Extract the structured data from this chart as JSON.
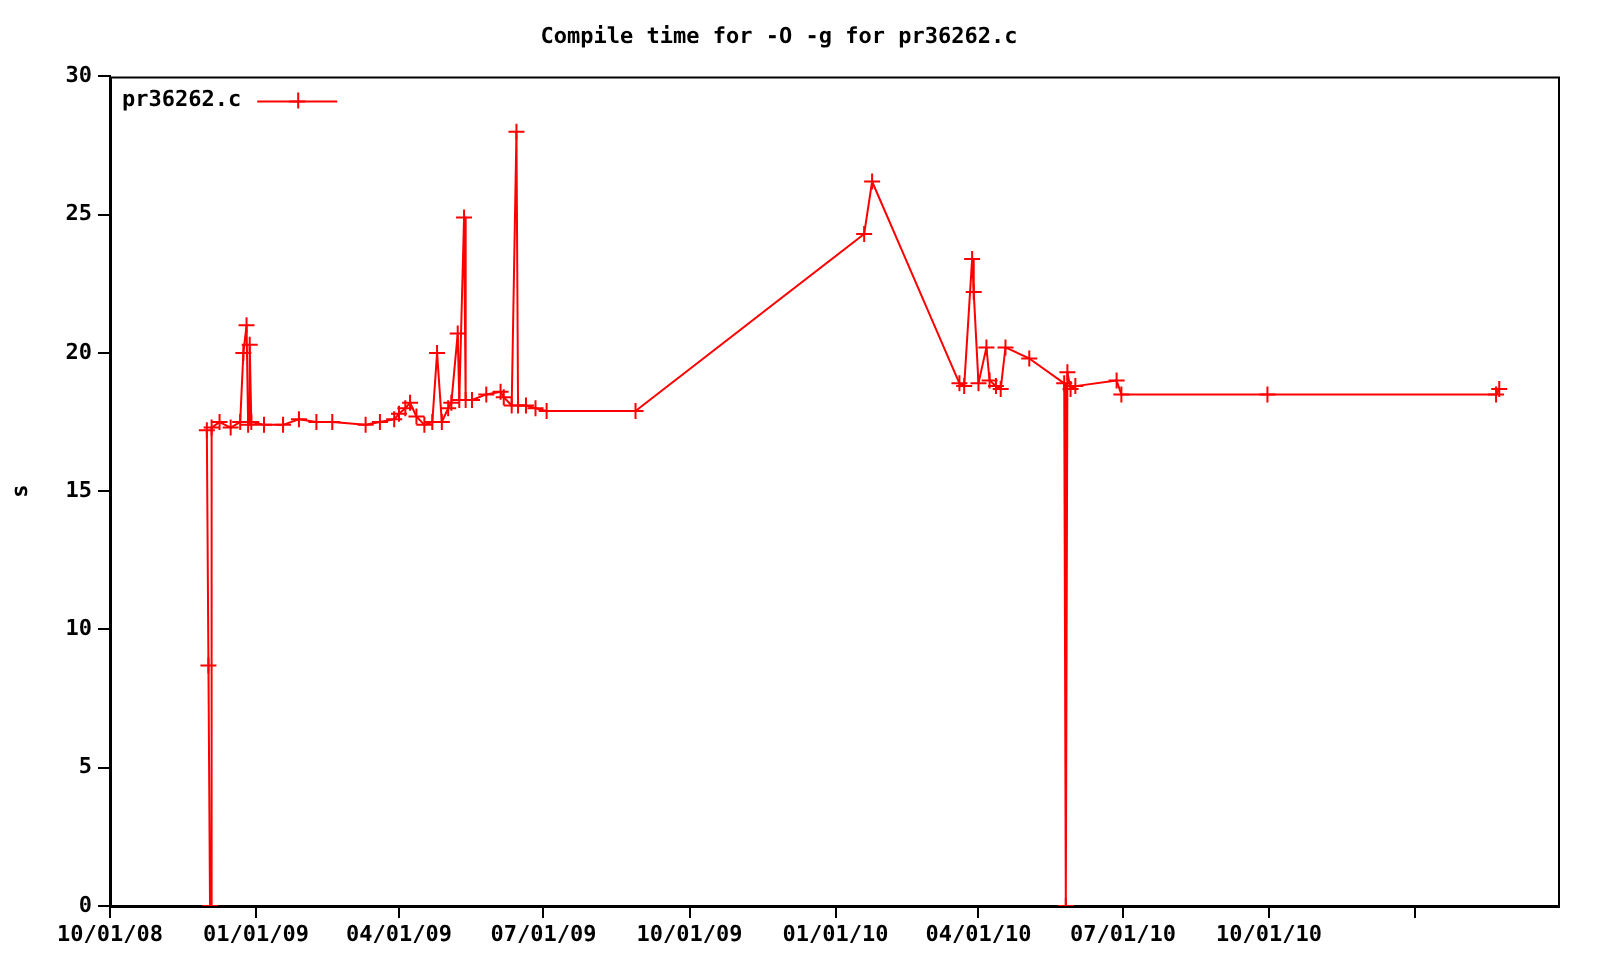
{
  "chart_data": {
    "type": "line",
    "title": "Compile time for -O -g for pr36262.c",
    "ylabel": "s",
    "xlim": [
      "2008-10-01",
      "2011-04-01"
    ],
    "xticks": [
      {
        "value": "2008-10-01",
        "label": "10/01/08"
      },
      {
        "value": "2009-01-01",
        "label": "01/01/09"
      },
      {
        "value": "2009-04-01",
        "label": "04/01/09"
      },
      {
        "value": "2009-07-01",
        "label": "07/01/09"
      },
      {
        "value": "2009-10-01",
        "label": "10/01/09"
      },
      {
        "value": "2010-01-01",
        "label": "01/01/10"
      },
      {
        "value": "2010-04-01",
        "label": "04/01/10"
      },
      {
        "value": "2010-07-01",
        "label": "07/01/10"
      },
      {
        "value": "2010-10-01",
        "label": "10/01/10"
      },
      {
        "value": "2011-01-01",
        "label": null
      }
    ],
    "ylim": [
      0,
      30
    ],
    "yticks": [
      0,
      5,
      10,
      15,
      20,
      25,
      30
    ],
    "grid": false,
    "legend": "top left",
    "marker": "cross",
    "line_style": "solid",
    "series": [
      {
        "name": "pr36262.c",
        "color": "#ff0000",
        "x": [
          "2008-12-01",
          "2008-12-02",
          "2008-12-03",
          "2008-12-04",
          "2008-12-09",
          "2008-12-16",
          "2008-12-22",
          "2008-12-24",
          "2008-12-26",
          "2008-12-27",
          "2008-12-28",
          "2008-12-29",
          "2009-01-06",
          "2009-01-18",
          "2009-01-28",
          "2009-02-08",
          "2009-02-18",
          "2009-03-11",
          "2009-03-20",
          "2009-03-29",
          "2009-04-01",
          "2009-04-05",
          "2009-04-08",
          "2009-04-12",
          "2009-04-17",
          "2009-04-22",
          "2009-04-25",
          "2009-04-28",
          "2009-05-02",
          "2009-05-04",
          "2009-05-08",
          "2009-05-09",
          "2009-05-12",
          "2009-05-13",
          "2009-05-17",
          "2009-05-26",
          "2009-06-04",
          "2009-06-06",
          "2009-06-11",
          "2009-06-14",
          "2009-06-15",
          "2009-06-20",
          "2009-06-26",
          "2009-07-03",
          "2009-08-28",
          "2010-01-19",
          "2010-01-24",
          "2010-03-20",
          "2010-03-23",
          "2010-03-28",
          "2010-03-29",
          "2010-04-01",
          "2010-04-06",
          "2010-04-08",
          "2010-04-12",
          "2010-04-15",
          "2010-04-18",
          "2010-05-03",
          "2010-05-25",
          "2010-05-26",
          "2010-05-27",
          "2010-05-29",
          "2010-06-01",
          "2010-06-27",
          "2010-06-30",
          "2010-09-30",
          "2011-02-21",
          "2011-02-23"
        ],
        "values": [
          17.2,
          8.7,
          0,
          17.3,
          17.5,
          17.3,
          17.5,
          20.0,
          21.0,
          17.4,
          20.3,
          17.5,
          17.4,
          17.4,
          17.6,
          17.5,
          17.5,
          17.4,
          17.5,
          17.6,
          17.8,
          18.0,
          18.2,
          17.7,
          17.4,
          17.5,
          20.0,
          17.5,
          18.0,
          18.2,
          20.7,
          18.3,
          24.9,
          18.3,
          18.3,
          18.5,
          18.6,
          18.4,
          18.1,
          28.0,
          18.1,
          18.1,
          18.0,
          17.9,
          17.9,
          24.3,
          26.2,
          18.9,
          18.8,
          23.4,
          22.2,
          18.9,
          20.2,
          19.0,
          18.8,
          18.7,
          20.2,
          19.8,
          18.9,
          0,
          19.3,
          18.7,
          18.8,
          19.0,
          18.5,
          18.5,
          18.5,
          18.7
        ]
      }
    ]
  }
}
